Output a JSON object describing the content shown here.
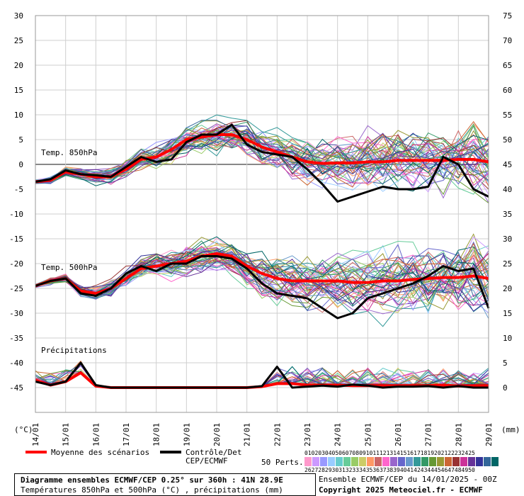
{
  "chart_data": {
    "type": "line",
    "x_dates": [
      "14/01",
      "15/01",
      "16/01",
      "17/01",
      "18/01",
      "19/01",
      "20/01",
      "21/01",
      "22/01",
      "23/01",
      "24/01",
      "25/01",
      "26/01",
      "27/01",
      "28/01",
      "29/01"
    ],
    "x_unit_label": "(°C)",
    "x_unit_label_right": "(mm)",
    "y_left_ticks": [
      30,
      25,
      20,
      15,
      10,
      5,
      0,
      -5,
      -10,
      -15,
      -20,
      -25,
      -30,
      -35,
      -40,
      -45
    ],
    "y_left_range": [
      -50,
      30
    ],
    "y_right_ticks": [
      75,
      70,
      65,
      60,
      55,
      50,
      45,
      40,
      35,
      30,
      25,
      20,
      15,
      10,
      5,
      0
    ],
    "y_right_range": [
      -5,
      75
    ],
    "grid": true,
    "annotations": {
      "t850": "Temp. 850hPa",
      "t500": "Temp. 500hPa",
      "precip": "Précipitations"
    },
    "series": [
      {
        "name": "Moyenne des scénarios",
        "color": "#ff0000",
        "group": "t850",
        "x": [
          0,
          0.5,
          1,
          1.5,
          2,
          2.5,
          3,
          3.5,
          4,
          4.5,
          5,
          5.5,
          6,
          6.5,
          7,
          7.5,
          8,
          8.5,
          9,
          9.5,
          10,
          10.5,
          11,
          11.5,
          12,
          12.5,
          13,
          13.5,
          14,
          14.5,
          15
        ],
        "values": [
          -3.5,
          -3.2,
          -1.5,
          -2.0,
          -2.5,
          -2.5,
          -1,
          1,
          1.5,
          3,
          5,
          5.5,
          6,
          6,
          5,
          3.5,
          2.5,
          1.5,
          0.5,
          0.2,
          0.3,
          0.3,
          0.5,
          0.5,
          0.8,
          0.8,
          0.8,
          0.8,
          1,
          1,
          0.5
        ]
      },
      {
        "name": "Contrôle/Det CEP/ECMWF",
        "color": "#000000",
        "group": "t850",
        "x": [
          0,
          0.5,
          1,
          1.5,
          2,
          2.5,
          3,
          3.5,
          4,
          4.5,
          5,
          5.5,
          6,
          6.5,
          7,
          7.5,
          8,
          8.5,
          9,
          9.5,
          10,
          10.5,
          11,
          11.5,
          12,
          12.5,
          13,
          13.5,
          14,
          14.5,
          15
        ],
        "values": [
          -3.5,
          -3,
          -1.2,
          -2,
          -2.2,
          -2.5,
          -0.5,
          1.5,
          0.5,
          1,
          4.5,
          6,
          6,
          8,
          4,
          2.5,
          2,
          1.5,
          -1,
          -4,
          -7.5,
          -6.5,
          -5.5,
          -4.5,
          -5,
          -5,
          -4.5,
          1.5,
          0,
          -5,
          -6.5
        ]
      },
      {
        "name": "Moyenne des scénarios",
        "color": "#ff0000",
        "group": "t500",
        "x": [
          0,
          0.5,
          1,
          1.5,
          2,
          2.5,
          3,
          3.5,
          4,
          4.5,
          5,
          5.5,
          6,
          6.5,
          7,
          7.5,
          8,
          8.5,
          9,
          9.5,
          10,
          10.5,
          11,
          11.5,
          12,
          12.5,
          13,
          13.5,
          14,
          14.5,
          15
        ],
        "values": [
          -24.5,
          -23.5,
          -23,
          -25.5,
          -26,
          -25,
          -23,
          -21,
          -20.5,
          -20,
          -19.5,
          -18.5,
          -18,
          -18.5,
          -20.5,
          -22,
          -23,
          -23.5,
          -23.5,
          -23.5,
          -23.5,
          -23.8,
          -23.8,
          -23.5,
          -23.5,
          -23.2,
          -23,
          -22.8,
          -22.8,
          -22.5,
          -23
        ]
      },
      {
        "name": "Contrôle/Det CEP/ECMWF",
        "color": "#000000",
        "group": "t500",
        "x": [
          0,
          0.5,
          1,
          1.5,
          2,
          2.5,
          3,
          3.5,
          4,
          4.5,
          5,
          5.5,
          6,
          6.5,
          7,
          7.5,
          8,
          8.5,
          9,
          9.5,
          10,
          10.5,
          11,
          11.5,
          12,
          12.5,
          13,
          13.5,
          14,
          14.5,
          15
        ],
        "values": [
          -24.5,
          -23.5,
          -23,
          -26,
          -26.5,
          -25,
          -22,
          -20.5,
          -21.5,
          -20,
          -20,
          -18.5,
          -18.5,
          -19,
          -21,
          -24,
          -26,
          -26.5,
          -27,
          -29,
          -31,
          -30,
          -27,
          -26,
          -25,
          -24,
          -22.5,
          -20.5,
          -21.5,
          -21,
          -29
        ]
      },
      {
        "name": "Moyenne des scénarios",
        "color": "#ff0000",
        "group": "precip",
        "x": [
          0,
          0.5,
          1,
          1.5,
          2,
          2.5,
          3,
          3.5,
          4,
          4.5,
          5,
          5.5,
          6,
          6.5,
          7,
          7.5,
          8,
          8.5,
          9,
          9.5,
          10,
          10.5,
          11,
          11.5,
          12,
          12.5,
          13,
          13.5,
          14,
          14.5,
          15
        ],
        "values": [
          1.5,
          0.5,
          1.2,
          3,
          0.3,
          0,
          0,
          0,
          0,
          0,
          0,
          0,
          0,
          0,
          0,
          0.2,
          0.8,
          0.8,
          0.5,
          0.5,
          0.5,
          0.4,
          0.4,
          0.4,
          0.4,
          0.4,
          0.4,
          0.5,
          0.3,
          0.4,
          0.4
        ]
      },
      {
        "name": "Contrôle/Det CEP/ECMWF",
        "color": "#000000",
        "group": "precip",
        "x": [
          0,
          0.5,
          1,
          1.5,
          2,
          2.5,
          3,
          3.5,
          4,
          4.5,
          5,
          5.5,
          6,
          6.5,
          7,
          7.5,
          8,
          8.5,
          9,
          9.5,
          10,
          10.5,
          11,
          11.5,
          12,
          12.5,
          13,
          13.5,
          14,
          14.5,
          15
        ],
        "values": [
          1.2,
          0.5,
          1.2,
          5,
          0.5,
          0,
          0,
          0,
          0,
          0,
          0,
          0,
          0,
          0,
          0,
          0.3,
          4.2,
          0,
          0.2,
          0.4,
          0.2,
          0.6,
          0.4,
          0,
          0.2,
          0.2,
          0.3,
          0,
          0.3,
          0,
          0
        ]
      }
    ]
  },
  "legend": {
    "mean_label": "Moyenne des scénarios",
    "control_label_1": "Contrôle/Det",
    "control_label_2": "CEP/ECMWF",
    "perts_label": "50 Perts.",
    "pert_numbers_top": "01020304050607080910111213141516171819202122232425",
    "pert_numbers_bottom": "26272829303132333435363738394041424344454647484950",
    "pert_colors": [
      "#ff99cc",
      "#cc99ff",
      "#9999ff",
      "#99ccff",
      "#66cccc",
      "#66cc99",
      "#99cc66",
      "#cccc66",
      "#ff9966",
      "#cc6666",
      "#ff66cc",
      "#9966cc",
      "#6666cc",
      "#6699cc",
      "#339999",
      "#339966",
      "#669933",
      "#999933",
      "#cc6633",
      "#993333",
      "#cc3399",
      "#663399",
      "#333399",
      "#336699",
      "#006666"
    ]
  },
  "footer": {
    "title": "Diagramme ensembles ECMWF/CEP 0.25° sur 360h : 41N 28.9E",
    "subtitle": "Températures 850hPa et 500hPa (°C) , précipitations (mm)",
    "run": "Ensemble ECMWF/CEP du 14/01/2025 - 00Z",
    "copyright": "Copyright 2025 Meteociel.fr - ECMWF"
  }
}
